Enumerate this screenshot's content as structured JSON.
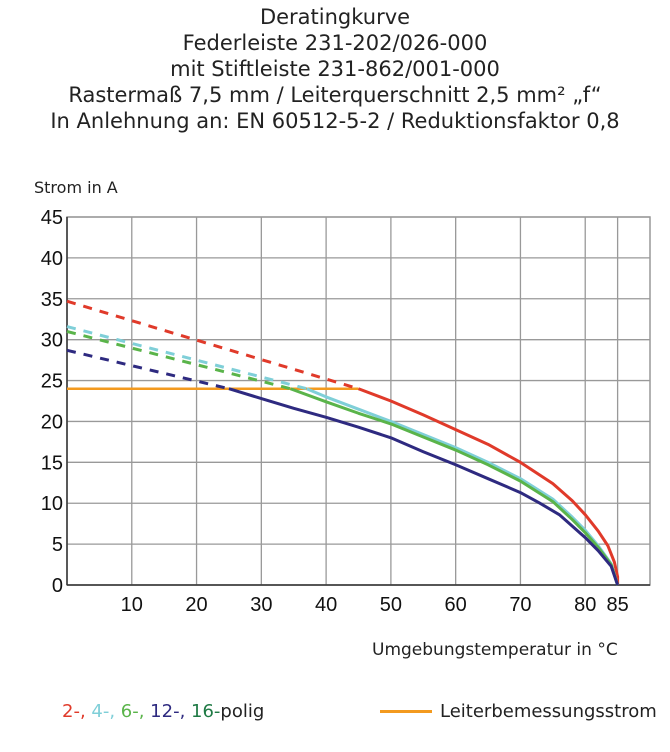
{
  "title_lines": [
    "Deratingkurve",
    "Federleiste 231-202/026-000",
    "mit Stiftleiste 231-862/001-000",
    "Rastermaß 7,5 mm / Leiterquerschnitt 2,5 mm² „f“",
    "In Anlehnung an: EN 60512-5-2 / Reduktionsfaktor 0,8"
  ],
  "chart_data": {
    "type": "line",
    "ylabel": "Strom in A",
    "xlabel": "Umgebungstemperatur in °C",
    "xlim": [
      0,
      90
    ],
    "ylim": [
      0,
      45
    ],
    "xticks": [
      10,
      20,
      30,
      40,
      50,
      60,
      70,
      80,
      85
    ],
    "yticks": [
      0,
      5,
      10,
      15,
      20,
      25,
      30,
      35,
      40,
      45
    ],
    "grid": true,
    "series": [
      {
        "name": "2-",
        "color": "#e03a2a",
        "dashed": [
          [
            0,
            34.7
          ],
          [
            45,
            24
          ]
        ],
        "solid": [
          [
            45,
            24
          ],
          [
            50,
            22.5
          ],
          [
            55,
            20.8
          ],
          [
            60,
            19
          ],
          [
            65,
            17.2
          ],
          [
            70,
            15
          ],
          [
            75,
            12.4
          ],
          [
            78,
            10.3
          ],
          [
            80,
            8.6
          ],
          [
            82,
            6.6
          ],
          [
            83.5,
            4.8
          ],
          [
            84.5,
            2.8
          ],
          [
            85,
            1
          ],
          [
            85,
            0
          ]
        ]
      },
      {
        "name": "4-",
        "color": "#7fcfd8",
        "dashed": [
          [
            0,
            31.6
          ],
          [
            37,
            24
          ]
        ],
        "solid": [
          [
            37,
            24
          ],
          [
            40,
            23
          ],
          [
            45,
            21.5
          ],
          [
            50,
            20
          ],
          [
            55,
            18.4
          ],
          [
            60,
            16.8
          ],
          [
            65,
            15
          ],
          [
            70,
            13
          ],
          [
            75,
            10.5
          ],
          [
            78,
            8.3
          ],
          [
            80,
            6.7
          ],
          [
            82,
            4.8
          ],
          [
            84,
            2.6
          ],
          [
            85,
            0
          ]
        ]
      },
      {
        "name": "6-",
        "color": "#5ab44a",
        "dashed": [
          [
            0,
            31
          ],
          [
            34.5,
            24
          ]
        ],
        "solid": [
          [
            34.5,
            24
          ],
          [
            40,
            22.4
          ],
          [
            45,
            21
          ],
          [
            50,
            19.7
          ],
          [
            55,
            18.1
          ],
          [
            60,
            16.5
          ],
          [
            65,
            14.7
          ],
          [
            70,
            12.7
          ],
          [
            75,
            10.2
          ],
          [
            78,
            8
          ],
          [
            80,
            6.4
          ],
          [
            82,
            4.6
          ],
          [
            84,
            2.5
          ],
          [
            85,
            0
          ]
        ]
      },
      {
        "name": "12-",
        "color": "#2e2a80",
        "dashed": [
          [
            0,
            28.7
          ],
          [
            25,
            24
          ]
        ],
        "solid": [
          [
            25,
            24
          ],
          [
            30,
            22.8
          ],
          [
            35,
            21.6
          ],
          [
            40,
            20.5
          ],
          [
            45,
            19.3
          ],
          [
            50,
            18
          ],
          [
            55,
            16.3
          ],
          [
            60,
            14.7
          ],
          [
            65,
            13
          ],
          [
            70,
            11.3
          ],
          [
            73,
            10
          ],
          [
            76,
            8.6
          ],
          [
            80,
            5.8
          ],
          [
            82,
            4.2
          ],
          [
            84,
            2.3
          ],
          [
            85,
            0
          ]
        ]
      }
    ],
    "reference_line": {
      "name": "Leiterbemessungsstrom",
      "color": "#f39a1f",
      "points": [
        [
          0,
          24
        ],
        [
          45,
          24
        ]
      ]
    }
  },
  "legend": {
    "poles": [
      {
        "text": "2-,",
        "color": "#e03a2a"
      },
      {
        "text": " 4-,",
        "color": "#7fcfd8"
      },
      {
        "text": " 6-,",
        "color": "#5ab44a"
      },
      {
        "text": " 12-,",
        "color": "#2e2a80"
      },
      {
        "text": " 16-",
        "color": "#1f7a45"
      },
      {
        "text": "polig",
        "color": "#222222"
      }
    ],
    "reference": "Leiterbemessungsstrom"
  }
}
